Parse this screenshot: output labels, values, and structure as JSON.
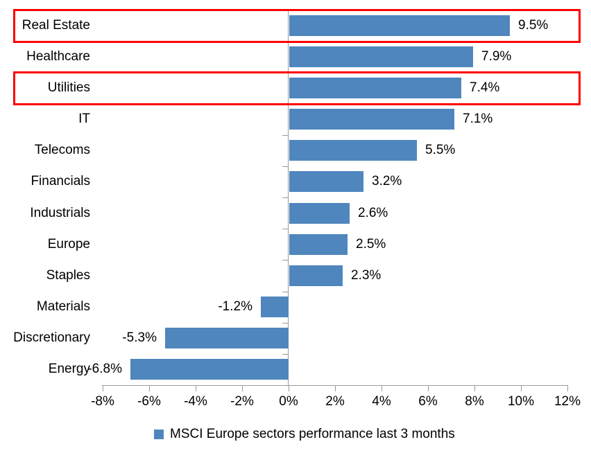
{
  "chart_data": {
    "type": "bar",
    "orientation": "horizontal",
    "title": "",
    "categories": [
      "Real Estate",
      "Healthcare",
      "Utilities",
      "IT",
      "Telecoms",
      "Financials",
      "Industrials",
      "Europe",
      "Staples",
      "Materials",
      "Discretionary",
      "Energy"
    ],
    "values": [
      9.5,
      7.9,
      7.4,
      7.1,
      5.5,
      3.2,
      2.6,
      2.5,
      2.3,
      -1.2,
      -5.3,
      -6.8
    ],
    "data_labels": [
      "9.5%",
      "7.9%",
      "7.4%",
      "7.1%",
      "5.5%",
      "3.2%",
      "2.6%",
      "2.5%",
      "2.3%",
      "-1.2%",
      "-5.3%",
      "-6.8%"
    ],
    "highlighted_categories": [
      "Real Estate",
      "Utilities"
    ],
    "x_axis": {
      "min": -8,
      "max": 12,
      "step": 2,
      "tick_labels": [
        "-8%",
        "-6%",
        "-4%",
        "-2%",
        "0%",
        "2%",
        "4%",
        "6%",
        "8%",
        "10%",
        "12%"
      ]
    },
    "grid": false,
    "legend": {
      "position": "bottom",
      "label": "MSCI Europe sectors performance last 3 months"
    },
    "colors": {
      "bar": "#4F86BE",
      "highlight_border": "#FF0000",
      "axis": "#9A9A9A",
      "text": "#000000"
    }
  }
}
